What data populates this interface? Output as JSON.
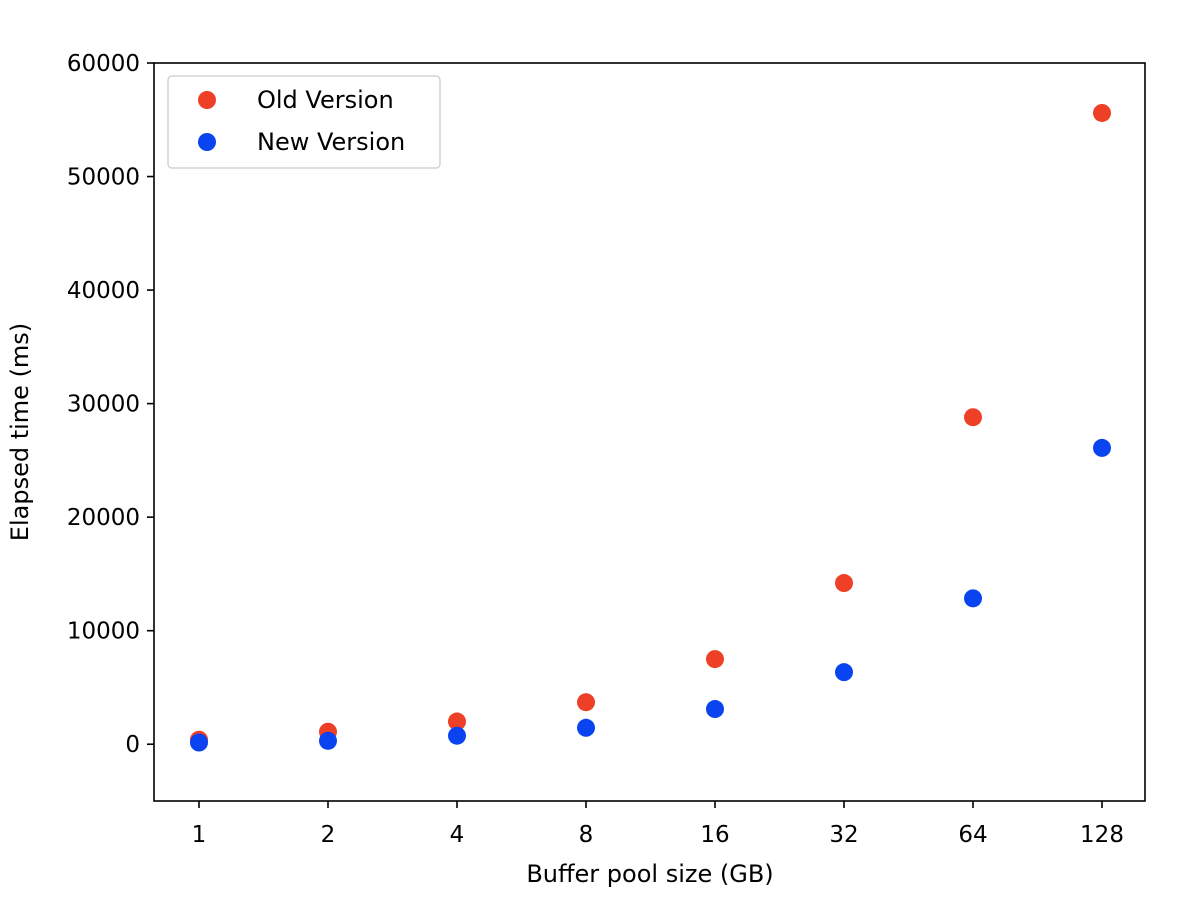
{
  "chart_data": {
    "type": "scatter",
    "title": "",
    "xlabel": "Buffer pool size (GB)",
    "ylabel": "Elapsed time (ms)",
    "x": [
      1,
      2,
      4,
      8,
      16,
      32,
      64,
      128
    ],
    "x_scale": "log2",
    "x_tick_labels": [
      "1",
      "2",
      "4",
      "8",
      "16",
      "32",
      "64",
      "128"
    ],
    "ylim": [
      -5000,
      60000
    ],
    "y_ticks": [
      0,
      10000,
      20000,
      30000,
      40000,
      50000,
      60000
    ],
    "y_tick_labels": [
      "0",
      "10000",
      "20000",
      "30000",
      "40000",
      "50000",
      "60000"
    ],
    "grid": false,
    "legend_position": "top-left",
    "series": [
      {
        "name": "Old Version",
        "color": "#ee4026",
        "values": [
          400,
          1100,
          2000,
          3700,
          7500,
          14200,
          28800,
          55600
        ]
      },
      {
        "name": "New Version",
        "color": "#0a44f0",
        "values": [
          150,
          300,
          750,
          1450,
          3100,
          6350,
          12850,
          26100
        ]
      }
    ]
  }
}
